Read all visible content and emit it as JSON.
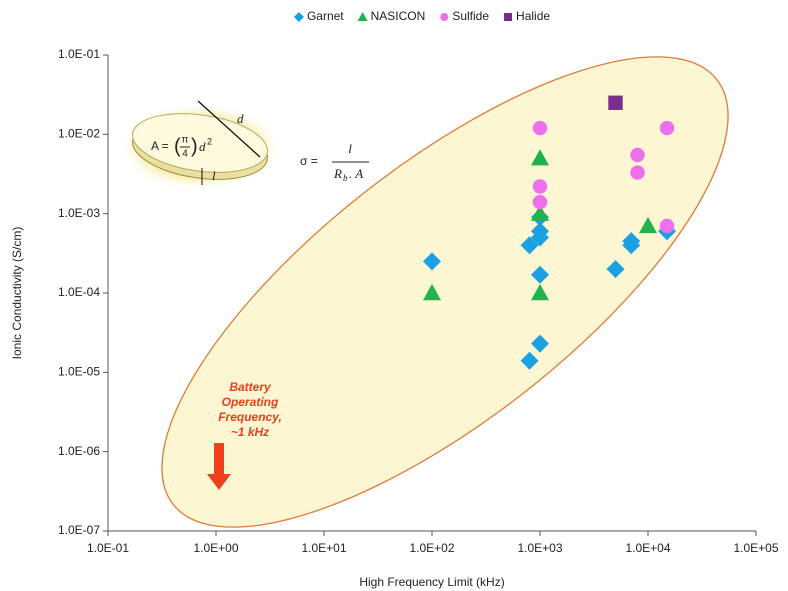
{
  "chart_data": {
    "type": "scatter",
    "x_label": "High Frequency Limit (kHz)",
    "y_label": "Ionic Conductivity (S/cm)",
    "log_x": true,
    "log_y": true,
    "legend": "top",
    "xlim": [
      0.1,
      100000
    ],
    "ylim": [
      1e-07,
      0.1
    ],
    "xticks": [
      {
        "value": 0.1,
        "label": "1.0E-01"
      },
      {
        "value": 1,
        "label": "1.0E+00"
      },
      {
        "value": 10,
        "label": "1.0E+01"
      },
      {
        "value": 100,
        "label": "1.0E+02"
      },
      {
        "value": 1000,
        "label": "1.0E+03"
      },
      {
        "value": 10000,
        "label": "1.0E+04"
      },
      {
        "value": 100000,
        "label": "1.0E+05"
      }
    ],
    "yticks": [
      {
        "value": 1e-07,
        "label": "1.0E-07"
      },
      {
        "value": 1e-06,
        "label": "1.0E-06"
      },
      {
        "value": 1e-05,
        "label": "1.0E-05"
      },
      {
        "value": 0.0001,
        "label": "1.0E-04"
      },
      {
        "value": 0.001,
        "label": "1.0E-03"
      },
      {
        "value": 0.01,
        "label": "1.0E-02"
      },
      {
        "value": 0.1,
        "label": "1.0E-01"
      }
    ],
    "series": [
      {
        "name": "Garnet",
        "color": "#1ba1e2",
        "marker": "diamond",
        "x": [
          100,
          800,
          1000,
          1000,
          1000,
          1000,
          1000,
          800,
          5000,
          7000,
          7000,
          15000
        ],
        "values": [
          0.00025,
          0.0004,
          0.0005,
          0.0006,
          0.0009,
          0.00017,
          2.3e-05,
          1.4e-05,
          0.0002,
          0.0004,
          0.00045,
          0.0006
        ]
      },
      {
        "name": "NASICON",
        "color": "#22b14c",
        "marker": "triangle",
        "x": [
          100,
          1000,
          1000,
          1000,
          10000
        ],
        "values": [
          0.0001,
          0.0001,
          0.005,
          0.001,
          0.0007
        ]
      },
      {
        "name": "Sulfide",
        "color": "#ee6fee",
        "marker": "circle",
        "x": [
          1000,
          1000,
          1000,
          8000,
          8000,
          15000,
          15000
        ],
        "values": [
          0.012,
          0.0022,
          0.0014,
          0.0055,
          0.0033,
          0.012,
          0.0007
        ]
      },
      {
        "name": "Halide",
        "color": "#7b2d8e",
        "marker": "square",
        "x": [
          5000
        ],
        "values": [
          0.025
        ]
      }
    ],
    "annotations": {
      "battery": [
        "Battery",
        "Operating",
        "Frequency,",
        "~1 kHz"
      ],
      "formula": {
        "lhs": "σ =",
        "num": "l",
        "den": "R",
        "sub": "b",
        "den_rest": ". A"
      },
      "disk": {
        "area": "A =",
        "pi": "π",
        "four": "4",
        "d": "d",
        "sq": "2",
        "diam": "d",
        "thick": "l"
      }
    }
  }
}
